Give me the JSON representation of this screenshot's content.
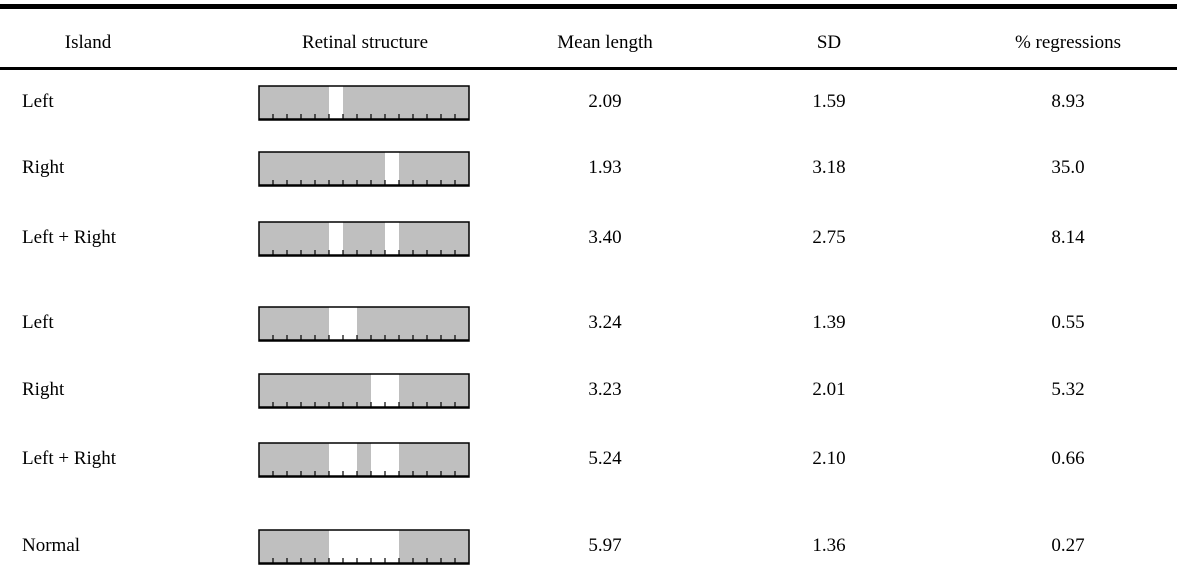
{
  "table": {
    "headers": {
      "island": "Island",
      "retinal": "Retinal structure",
      "mean": "Mean length",
      "sd": "SD",
      "regressions": "% regressions"
    },
    "rows": [
      {
        "island": "Left",
        "mean": "2.09",
        "sd": "1.59",
        "regressions": "8.93",
        "windows": [
          [
            5,
            6
          ]
        ]
      },
      {
        "island": "Right",
        "mean": "1.93",
        "sd": "3.18",
        "regressions": "35.0",
        "windows": [
          [
            9,
            10
          ]
        ]
      },
      {
        "island": "Left + Right",
        "mean": "3.40",
        "sd": "2.75",
        "regressions": "8.14",
        "windows": [
          [
            5,
            6
          ],
          [
            9,
            10
          ]
        ]
      },
      {
        "island": "Left",
        "mean": "3.24",
        "sd": "1.39",
        "regressions": "0.55",
        "windows": [
          [
            5,
            7
          ]
        ]
      },
      {
        "island": "Right",
        "mean": "3.23",
        "sd": "2.01",
        "regressions": "5.32",
        "windows": [
          [
            8,
            10
          ]
        ]
      },
      {
        "island": "Left + Right",
        "mean": "5.24",
        "sd": "2.10",
        "regressions": "0.66",
        "windows": [
          [
            5,
            7
          ],
          [
            8,
            10
          ]
        ]
      },
      {
        "island": "Normal",
        "mean": "5.97",
        "sd": "1.36",
        "regressions": "0.27",
        "windows": [
          [
            5,
            10
          ]
        ]
      }
    ],
    "retina_cells": 15,
    "colors": {
      "masked": "#bfbfbf",
      "window": "#ffffff",
      "outline": "#000000"
    }
  }
}
